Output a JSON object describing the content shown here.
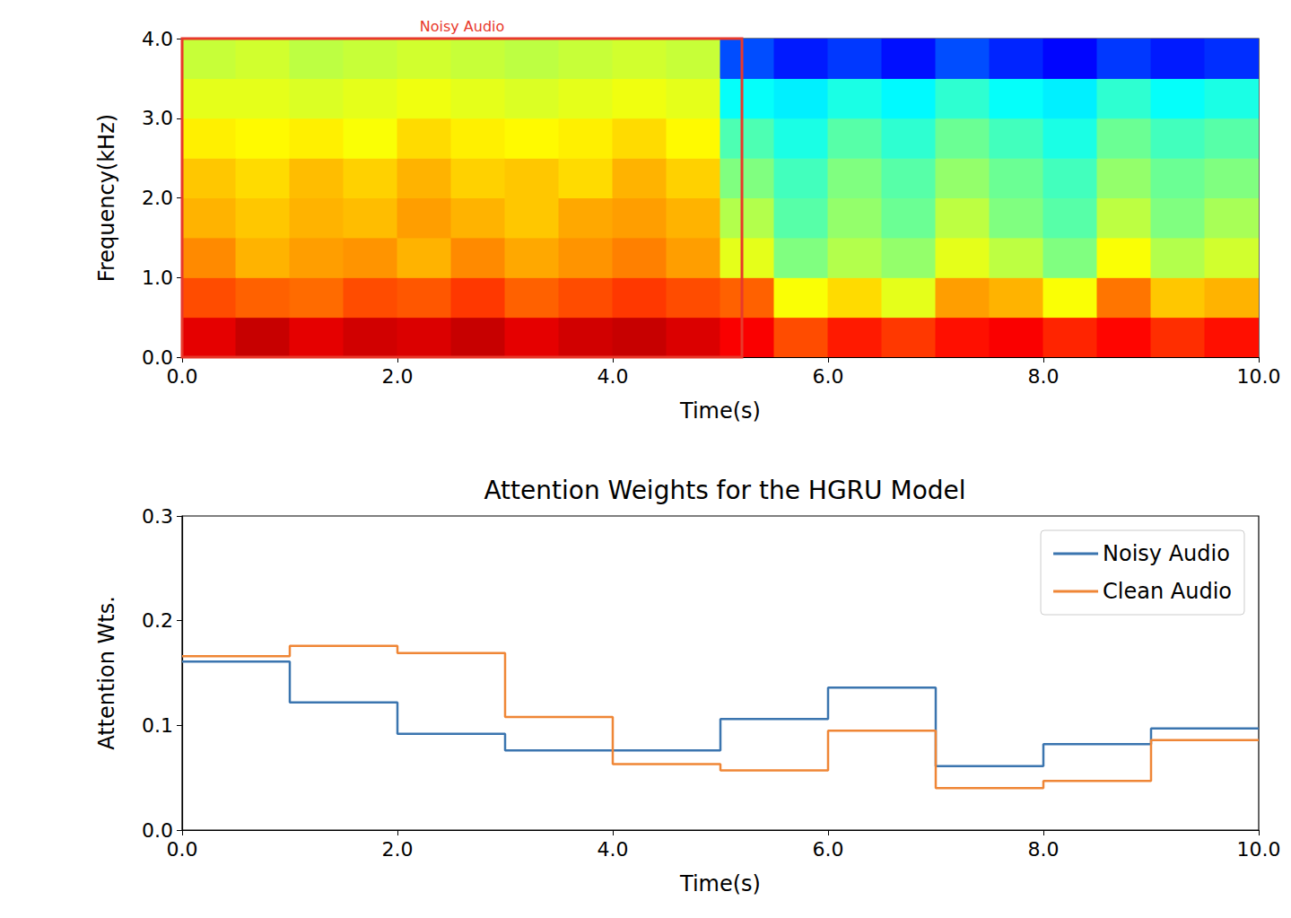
{
  "chart_data": [
    {
      "type": "heatmap",
      "color": "jet",
      "x_label": "Time(s)",
      "y_label": "Frequency(kHz)",
      "x_edges": [
        0,
        0.5,
        1,
        1.5,
        2,
        2.5,
        3,
        3.5,
        4,
        4.5,
        5,
        5.5,
        6,
        6.5,
        7,
        7.5,
        8,
        8.5,
        9,
        9.5,
        10
      ],
      "y_edges": [
        0,
        0.5,
        1,
        1.5,
        2,
        2.5,
        3,
        3.5,
        4
      ],
      "zlim": [
        0,
        1
      ],
      "cells": [
        [
          0.9,
          0.93,
          0.9,
          0.92,
          0.91,
          0.93,
          0.9,
          0.92,
          0.93,
          0.91,
          0.88,
          0.8,
          0.85,
          0.82,
          0.86,
          0.88,
          0.84,
          0.87,
          0.83,
          0.86
        ],
        [
          0.8,
          0.78,
          0.77,
          0.8,
          0.79,
          0.82,
          0.78,
          0.8,
          0.82,
          0.8,
          0.78,
          0.62,
          0.66,
          0.6,
          0.72,
          0.7,
          0.62,
          0.76,
          0.68,
          0.7
        ],
        [
          0.74,
          0.7,
          0.72,
          0.73,
          0.7,
          0.74,
          0.71,
          0.73,
          0.75,
          0.72,
          0.6,
          0.5,
          0.55,
          0.52,
          0.6,
          0.56,
          0.5,
          0.62,
          0.55,
          0.58
        ],
        [
          0.7,
          0.68,
          0.7,
          0.69,
          0.72,
          0.7,
          0.68,
          0.71,
          0.72,
          0.7,
          0.55,
          0.46,
          0.52,
          0.48,
          0.56,
          0.5,
          0.46,
          0.56,
          0.5,
          0.54
        ],
        [
          0.68,
          0.66,
          0.69,
          0.67,
          0.7,
          0.67,
          0.68,
          0.66,
          0.7,
          0.67,
          0.5,
          0.44,
          0.5,
          0.46,
          0.52,
          0.48,
          0.44,
          0.52,
          0.48,
          0.5
        ],
        [
          0.64,
          0.63,
          0.64,
          0.62,
          0.66,
          0.64,
          0.63,
          0.64,
          0.66,
          0.63,
          0.45,
          0.4,
          0.46,
          0.42,
          0.48,
          0.44,
          0.4,
          0.48,
          0.44,
          0.46
        ],
        [
          0.6,
          0.6,
          0.59,
          0.6,
          0.61,
          0.6,
          0.59,
          0.6,
          0.61,
          0.6,
          0.38,
          0.36,
          0.4,
          0.37,
          0.42,
          0.38,
          0.36,
          0.42,
          0.38,
          0.4
        ],
        [
          0.57,
          0.58,
          0.56,
          0.57,
          0.58,
          0.57,
          0.56,
          0.57,
          0.58,
          0.57,
          0.2,
          0.15,
          0.18,
          0.14,
          0.2,
          0.16,
          0.13,
          0.18,
          0.15,
          0.17
        ]
      ],
      "xlim": [
        0,
        10
      ],
      "xticks": [
        {
          "value": 0,
          "label": "0.0"
        },
        {
          "value": 2,
          "label": "2.0"
        },
        {
          "value": 4,
          "label": "4.0"
        },
        {
          "value": 6,
          "label": "6.0"
        },
        {
          "value": 8,
          "label": "8.0"
        },
        {
          "value": 10,
          "label": "10.0"
        }
      ],
      "ylim": [
        0,
        4
      ],
      "yticks": [
        {
          "value": 0,
          "label": "0.0"
        },
        {
          "value": 1,
          "label": "1.0"
        },
        {
          "value": 2,
          "label": "2.0"
        },
        {
          "value": 3,
          "label": "3.0"
        },
        {
          "value": 4,
          "label": "4.0"
        }
      ],
      "grid": false,
      "annotations": [
        {
          "text": "Noisy Audio",
          "xrange": [
            0,
            5.2
          ],
          "yrange": [
            0,
            4
          ],
          "color": "#e8392b"
        }
      ]
    },
    {
      "type": "line",
      "line_style": "step",
      "title": "Attention Weights for the HGRU Model",
      "x_label": "Time(s)",
      "y_label": "Attention Wts.",
      "bins": [
        0,
        1,
        2,
        3,
        4,
        5,
        6,
        7,
        8,
        9,
        10
      ],
      "series": [
        {
          "name": "Noisy Audio",
          "color": "#3b75af",
          "values": [
            0.161,
            0.122,
            0.092,
            0.076,
            0.076,
            0.106,
            0.136,
            0.061,
            0.082,
            0.097
          ]
        },
        {
          "name": "Clean Audio",
          "color": "#ef8636",
          "values": [
            0.166,
            0.176,
            0.169,
            0.108,
            0.063,
            0.057,
            0.095,
            0.04,
            0.047,
            0.086
          ]
        }
      ],
      "xlim": [
        0,
        10
      ],
      "xticks": [
        {
          "value": 0,
          "label": "0.0"
        },
        {
          "value": 2,
          "label": "2.0"
        },
        {
          "value": 4,
          "label": "4.0"
        },
        {
          "value": 6,
          "label": "6.0"
        },
        {
          "value": 8,
          "label": "8.0"
        },
        {
          "value": 10,
          "label": "10.0"
        }
      ],
      "ylim": [
        0,
        0.3
      ],
      "yticks": [
        {
          "value": 0,
          "label": "0.0"
        },
        {
          "value": 0.1,
          "label": "0.1"
        },
        {
          "value": 0.2,
          "label": "0.2"
        },
        {
          "value": 0.3,
          "label": "0.3"
        }
      ],
      "grid": false,
      "legend": "upper right"
    }
  ]
}
